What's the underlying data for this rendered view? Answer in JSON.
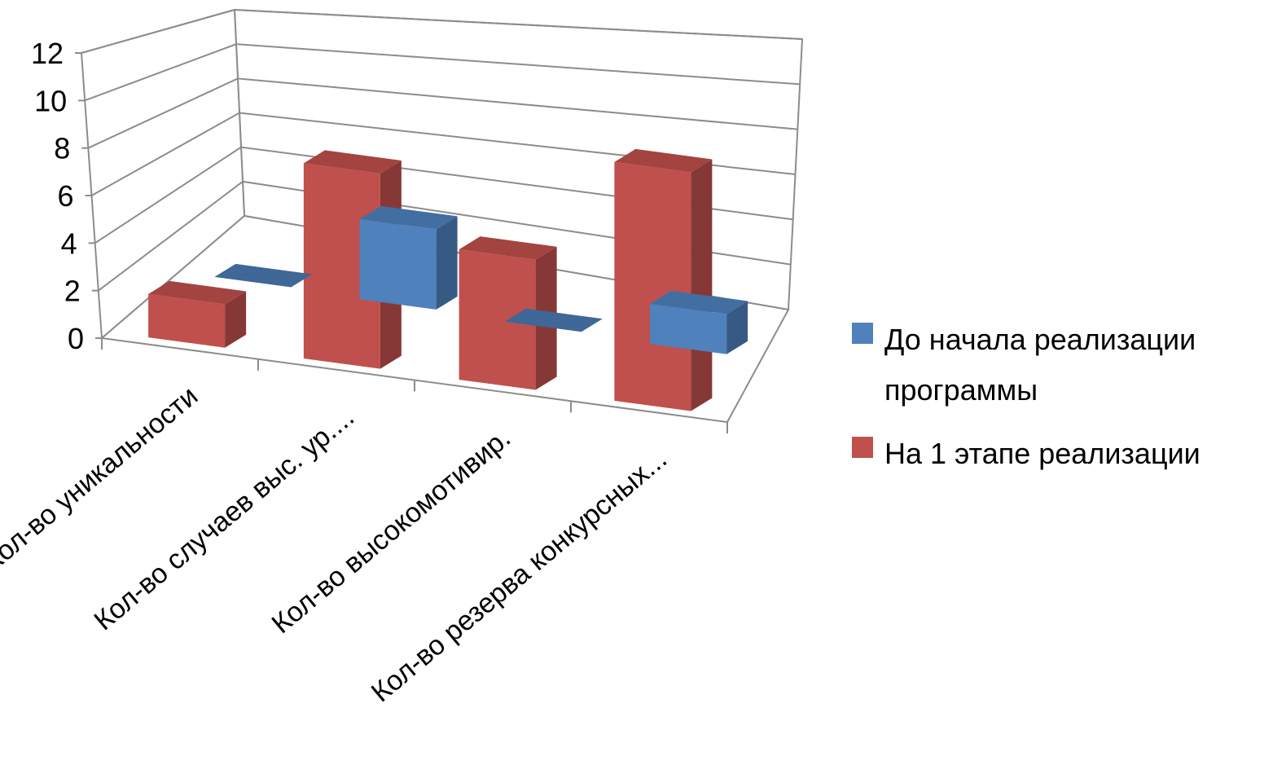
{
  "chart_data": {
    "type": "bar",
    "subtype": "3d-clustered-column",
    "categories": [
      "Кол-во уникальности",
      "Кол-во случаев выс. ур....",
      "Кол-во высокомотивир.",
      "Кол-во резерва конкурсных..."
    ],
    "series": [
      {
        "name": "До начала реализации программы",
        "values": [
          0,
          4,
          0,
          2
        ],
        "color": "#4F81BD"
      },
      {
        "name": "На 1 этапе реализации",
        "values": [
          2,
          9,
          6,
          11
        ],
        "color": "#C0504D"
      }
    ],
    "ylim": [
      0,
      12
    ],
    "yticks": [
      "0",
      "2",
      "4",
      "6",
      "8",
      "10",
      "12"
    ],
    "grid": true,
    "legend_position": "right"
  }
}
